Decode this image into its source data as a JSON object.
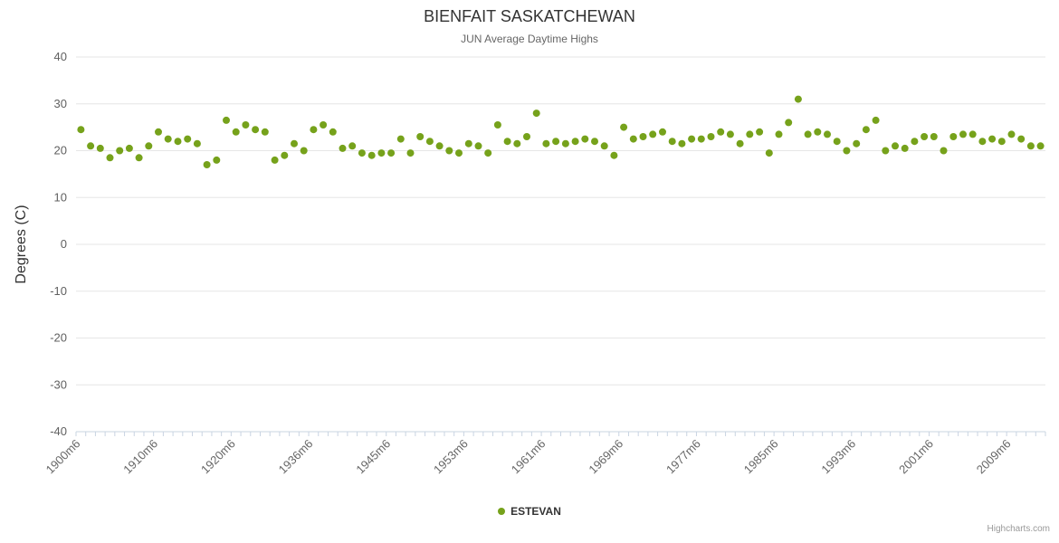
{
  "credits": "Highcharts.com",
  "chart_data": {
    "type": "scatter",
    "title": "BIENFAIT SASKATCHEWAN",
    "subtitle": "JUN Average Daytime Highs",
    "ylabel": "Degrees (C)",
    "ylim": [
      -40,
      40
    ],
    "ytick_interval": 10,
    "y_tick_labels": [
      "40",
      "30",
      "20",
      "10",
      "0",
      "-10",
      "-20",
      "-30",
      "-40"
    ],
    "x_tick_labels": [
      "1900m6",
      "1910m6",
      "1920m6",
      "1936m6",
      "1945m6",
      "1953m6",
      "1961m6",
      "1969m6",
      "1977m6",
      "1985m6",
      "1993m6",
      "2001m6",
      "2009m6"
    ],
    "x_label_every": 8,
    "grid": true,
    "legend_position": "bottom",
    "colors": {
      "point": "#76a21b",
      "grid": "#e6e6e6",
      "axis": "#c9d4e2",
      "ylabel_text": "#606060",
      "xlabel_text": "#666666"
    },
    "series": [
      {
        "name": "ESTEVAN",
        "points": [
          [
            "1900m6",
            24.5
          ],
          [
            "1901m6",
            21
          ],
          [
            "1903m6",
            20.5
          ],
          [
            "1904m6",
            18.5
          ],
          [
            "1905m6",
            20
          ],
          [
            "1906m6",
            20.5
          ],
          [
            "1908m6",
            18.5
          ],
          [
            "1909m6",
            21
          ],
          [
            "1910m6",
            24
          ],
          [
            "1911m6",
            22.5
          ],
          [
            "1913m6",
            22
          ],
          [
            "1914m6",
            22.5
          ],
          [
            "1915m6",
            21.5
          ],
          [
            "1916m6",
            17
          ],
          [
            "1918m6",
            18
          ],
          [
            "1919m6",
            26.5
          ],
          [
            "1920m6",
            24
          ],
          [
            "1921m6",
            25.5
          ],
          [
            "1922m6",
            24.5
          ],
          [
            "1923m6",
            24
          ],
          [
            "1925m6",
            18
          ],
          [
            "1927m6",
            19
          ],
          [
            "1930m6",
            21.5
          ],
          [
            "1933m6",
            20
          ],
          [
            "1936m6",
            24.5
          ],
          [
            "1937m6",
            25.5
          ],
          [
            "1938m6",
            24
          ],
          [
            "1939m6",
            20.5
          ],
          [
            "1941m6",
            21
          ],
          [
            "1942m6",
            19.5
          ],
          [
            "1943m6",
            19
          ],
          [
            "1944m6",
            19.5
          ],
          [
            "1945m6",
            19.5
          ],
          [
            "1946m6",
            22.5
          ],
          [
            "1947m6",
            19.5
          ],
          [
            "1948m6",
            23
          ],
          [
            "1949m6",
            22
          ],
          [
            "1950m6",
            21
          ],
          [
            "1951m6",
            20
          ],
          [
            "1952m6",
            19.5
          ],
          [
            "1953m6",
            21.5
          ],
          [
            "1954m6",
            21
          ],
          [
            "1955m6",
            19.5
          ],
          [
            "1956m6",
            25.5
          ],
          [
            "1957m6",
            22
          ],
          [
            "1958m6",
            21.5
          ],
          [
            "1959m6",
            23
          ],
          [
            "1960m6",
            28
          ],
          [
            "1961m6",
            21.5
          ],
          [
            "1962m6",
            22
          ],
          [
            "1963m6",
            21.5
          ],
          [
            "1964m6",
            22
          ],
          [
            "1965m6",
            22.5
          ],
          [
            "1966m6",
            22
          ],
          [
            "1967m6",
            21
          ],
          [
            "1968m6",
            19
          ],
          [
            "1969m6",
            25
          ],
          [
            "1970m6",
            22.5
          ],
          [
            "1971m6",
            23
          ],
          [
            "1972m6",
            23.5
          ],
          [
            "1973m6",
            24
          ],
          [
            "1974m6",
            22
          ],
          [
            "1975m6",
            21.5
          ],
          [
            "1976m6",
            22.5
          ],
          [
            "1977m6",
            22.5
          ],
          [
            "1978m6",
            23
          ],
          [
            "1979m6",
            24
          ],
          [
            "1980m6",
            23.5
          ],
          [
            "1981m6",
            21.5
          ],
          [
            "1982m6",
            23.5
          ],
          [
            "1983m6",
            24
          ],
          [
            "1984m6",
            19.5
          ],
          [
            "1985m6",
            23.5
          ],
          [
            "1986m6",
            26
          ],
          [
            "1987m6",
            31
          ],
          [
            "1988m6",
            23.5
          ],
          [
            "1989m6",
            24
          ],
          [
            "1990m6",
            23.5
          ],
          [
            "1991m6",
            22
          ],
          [
            "1992m6",
            20
          ],
          [
            "1993m6",
            21.5
          ],
          [
            "1994m6",
            24.5
          ],
          [
            "1995m6",
            26.5
          ],
          [
            "1996m6",
            20
          ],
          [
            "1997m6",
            21
          ],
          [
            "1998m6",
            20.5
          ],
          [
            "1999m6",
            22
          ],
          [
            "2000m6",
            23
          ],
          [
            "2001m6",
            23
          ],
          [
            "2002m6",
            20
          ],
          [
            "2003m6",
            23
          ],
          [
            "2004m6",
            23.5
          ],
          [
            "2005m6",
            23.5
          ],
          [
            "2006m6",
            22
          ],
          [
            "2007m6",
            22.5
          ],
          [
            "2008m6",
            22
          ],
          [
            "2009m6",
            23.5
          ],
          [
            "2010m6",
            22.5
          ],
          [
            "2011m6",
            21
          ],
          [
            "2012m6",
            21
          ]
        ]
      }
    ]
  }
}
